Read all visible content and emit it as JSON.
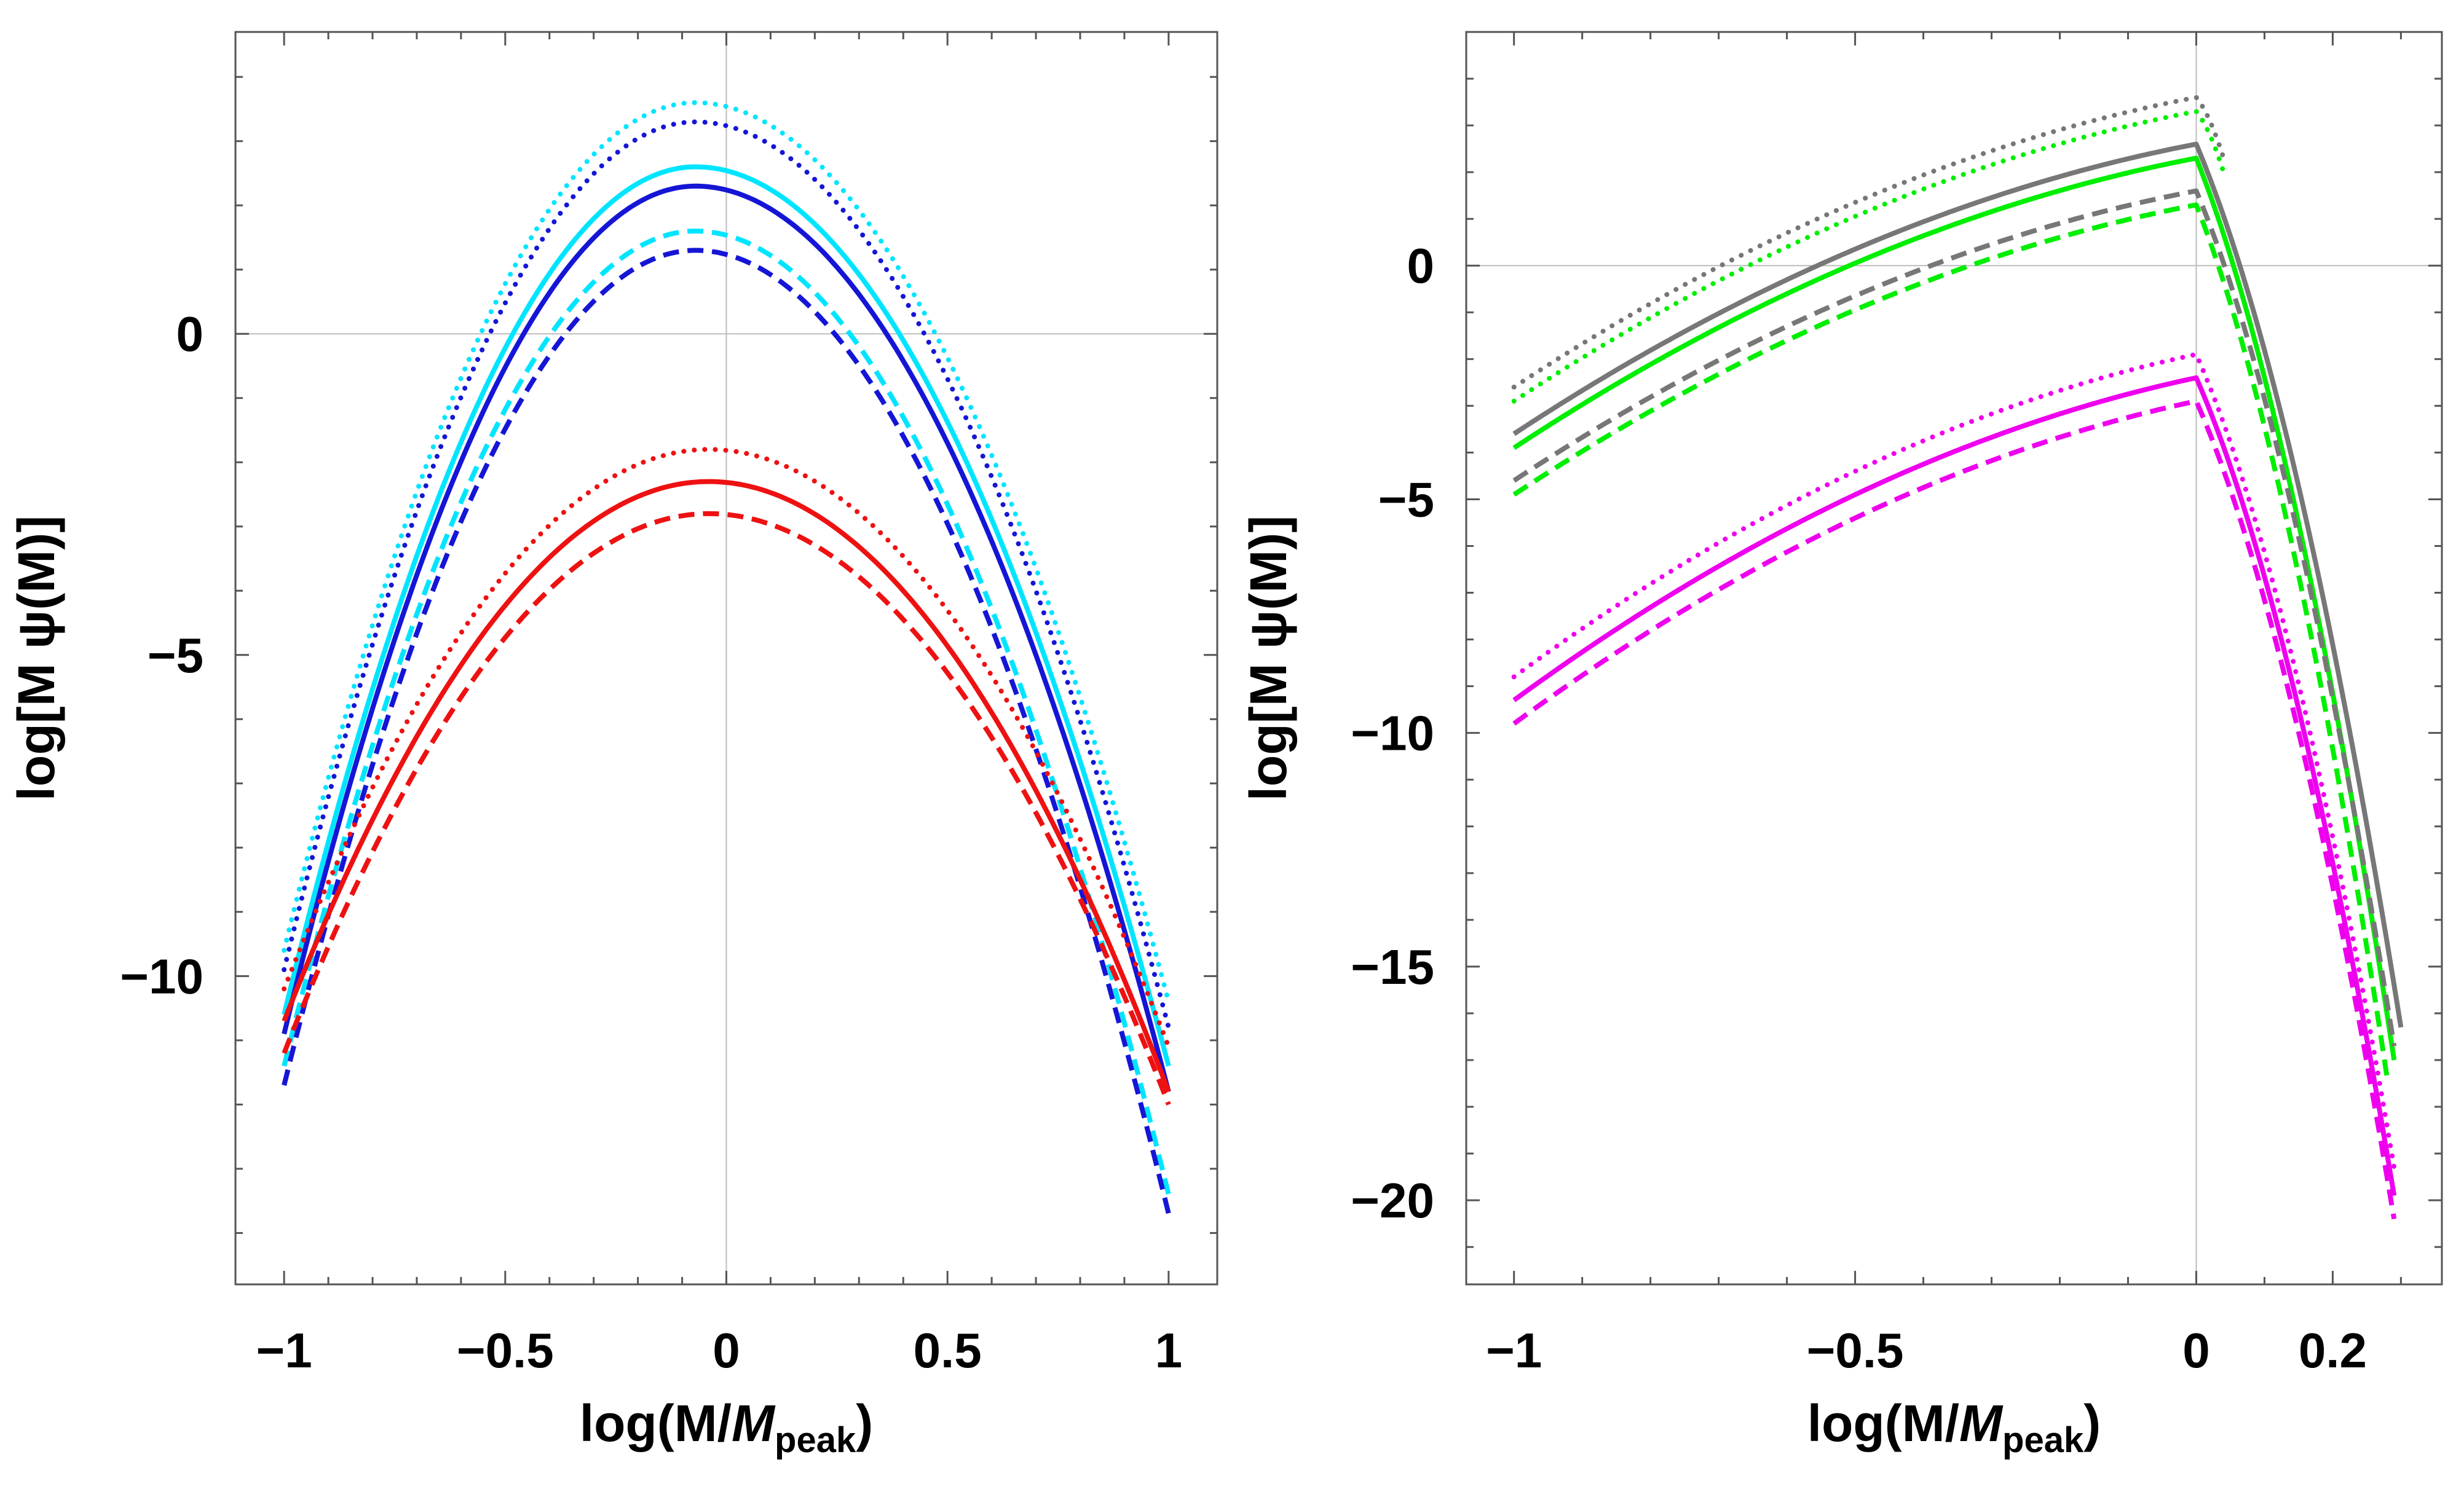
{
  "chart_data": [
    {
      "type": "line",
      "id": "left",
      "xlabel": "log(M/",
      "xlabel_italic": "M",
      "xlabel_sub": "peak",
      "xlabel_close": ")",
      "ylabel": "log[M ψ(M)]",
      "xlim": [
        -1.11,
        1.11
      ],
      "ylim": [
        -14.8,
        4.7
      ],
      "xticks": [
        {
          "value": -1,
          "label": "−1"
        },
        {
          "value": -0.5,
          "label": "−0.5"
        },
        {
          "value": 0,
          "label": "0"
        },
        {
          "value": 0.5,
          "label": "0.5"
        },
        {
          "value": 1,
          "label": "1"
        }
      ],
      "yticks": [
        {
          "value": 0,
          "label": "0"
        },
        {
          "value": -5,
          "label": "−5"
        },
        {
          "value": -10,
          "label": "−10"
        }
      ],
      "minor_yticks": [
        -14,
        -13,
        -12,
        -11,
        -9,
        -8,
        -7,
        -6,
        -4,
        -3,
        -2,
        -1,
        1,
        2,
        3,
        4
      ],
      "minor_xticks": [
        -0.9,
        -0.8,
        -0.7,
        -0.6,
        -0.4,
        -0.3,
        -0.2,
        -0.1,
        0.1,
        0.2,
        0.3,
        0.4,
        0.6,
        0.7,
        0.8,
        0.9
      ],
      "gridlines": {
        "x": 0,
        "y": 0
      },
      "series": [
        {
          "name": "cyan dotted",
          "color": "#00e5ff",
          "style": "dotted",
          "kind": "parabola",
          "x0": -0.07,
          "ymax": 3.6,
          "left": -9.6,
          "right": -10.4
        },
        {
          "name": "blue dotted",
          "color": "#1515d6",
          "style": "dotted",
          "kind": "parabola",
          "x0": -0.07,
          "ymax": 3.3,
          "left": -9.9,
          "right": -10.8
        },
        {
          "name": "cyan solid",
          "color": "#00e5ff",
          "style": "solid",
          "kind": "parabola",
          "x0": -0.07,
          "ymax": 2.6,
          "left": -10.6,
          "right": -11.4
        },
        {
          "name": "blue solid",
          "color": "#1515d6",
          "style": "solid",
          "kind": "parabola",
          "x0": -0.07,
          "ymax": 2.3,
          "left": -10.9,
          "right": -11.8
        },
        {
          "name": "cyan dashed",
          "color": "#00e5ff",
          "style": "dashed",
          "kind": "parabola",
          "x0": -0.07,
          "ymax": 1.6,
          "left": -11.4,
          "right": -13.4
        },
        {
          "name": "blue dashed",
          "color": "#1515d6",
          "style": "dashed",
          "kind": "parabola",
          "x0": -0.07,
          "ymax": 1.3,
          "left": -11.7,
          "right": -13.7
        },
        {
          "name": "red dotted",
          "color": "#ee1111",
          "style": "dotted",
          "kind": "parabola",
          "x0": -0.04,
          "ymax": -1.8,
          "left": -10.2,
          "right": -11.1
        },
        {
          "name": "red solid",
          "color": "#ee1111",
          "style": "solid",
          "kind": "parabola",
          "x0": -0.04,
          "ymax": -2.3,
          "left": -10.7,
          "right": -11.8
        },
        {
          "name": "red dashed",
          "color": "#ee1111",
          "style": "dashed",
          "kind": "parabola",
          "x0": -0.04,
          "ymax": -2.8,
          "left": -11.2,
          "right": -12.0
        }
      ]
    },
    {
      "type": "line",
      "id": "right",
      "xlabel": "log(M/",
      "xlabel_italic": "M",
      "xlabel_sub": "peak",
      "xlabel_close": ")",
      "ylabel": "log[M ψ(M)]",
      "xlim": [
        -1.07,
        0.36
      ],
      "ylim": [
        -21.8,
        5.0
      ],
      "xticks": [
        {
          "value": -1,
          "label": "−1"
        },
        {
          "value": -0.5,
          "label": "−0.5"
        },
        {
          "value": 0,
          "label": "0"
        },
        {
          "value": 0.2,
          "label": "0.2"
        }
      ],
      "yticks": [
        {
          "value": 0,
          "label": "0"
        },
        {
          "value": -5,
          "label": "−5"
        },
        {
          "value": -10,
          "label": "−10"
        },
        {
          "value": -15,
          "label": "−15"
        },
        {
          "value": -20,
          "label": "−20"
        }
      ],
      "minor_yticks": [
        -21,
        -19,
        -18,
        -17,
        -16,
        -14,
        -13,
        -12,
        -11,
        -9,
        -8,
        -7,
        -6,
        -4,
        -3,
        -2,
        -1,
        1,
        2,
        3,
        4
      ],
      "minor_xticks": [
        -0.9,
        -0.8,
        -0.7,
        -0.6,
        -0.4,
        -0.3,
        -0.2,
        -0.1,
        0.1,
        0.3
      ],
      "gridlines": {
        "x": 0,
        "y": 0
      },
      "series": [
        {
          "name": "gray dotted",
          "color": "#777777",
          "style": "dotted",
          "kind": "broken",
          "x_left": -1,
          "y_left": -2.6,
          "peak": 3.6,
          "x_end": 0.04,
          "y_end": 2.3
        },
        {
          "name": "green dotted",
          "color": "#00ee00",
          "style": "dotted",
          "kind": "broken",
          "x_left": -1,
          "y_left": -2.9,
          "peak": 3.3,
          "x_end": 0.04,
          "y_end": 2.0
        },
        {
          "name": "gray solid",
          "color": "#777777",
          "style": "solid",
          "kind": "broken",
          "x_left": -1,
          "y_left": -3.6,
          "peak": 2.6,
          "x_end": 0.3,
          "y_end": -16.3
        },
        {
          "name": "green solid",
          "color": "#00ee00",
          "style": "solid",
          "kind": "broken",
          "x_left": -1,
          "y_left": -3.9,
          "peak": 2.3,
          "x_end": 0.29,
          "y_end": -17.0
        },
        {
          "name": "gray dashed",
          "color": "#777777",
          "style": "dashed",
          "kind": "broken",
          "x_left": -1,
          "y_left": -4.6,
          "peak": 1.6,
          "x_end": 0.29,
          "y_end": -16.7
        },
        {
          "name": "green dashed",
          "color": "#00ee00",
          "style": "dashed",
          "kind": "broken",
          "x_left": -1,
          "y_left": -4.9,
          "peak": 1.3,
          "x_end": 0.28,
          "y_end": -17.4
        },
        {
          "name": "magenta dotted",
          "color": "#ee00ee",
          "style": "dotted",
          "kind": "broken",
          "x_left": -1,
          "y_left": -8.8,
          "peak": -1.9,
          "x_end": 0.29,
          "y_end": -19.3
        },
        {
          "name": "magenta solid",
          "color": "#ee00ee",
          "style": "solid",
          "kind": "broken",
          "x_left": -1,
          "y_left": -9.3,
          "peak": -2.4,
          "x_end": 0.29,
          "y_end": -19.9
        },
        {
          "name": "magenta dashed",
          "color": "#ee00ee",
          "style": "dashed",
          "kind": "broken",
          "x_left": -1,
          "y_left": -9.8,
          "peak": -2.9,
          "x_end": 0.29,
          "y_end": -20.4
        }
      ]
    }
  ]
}
